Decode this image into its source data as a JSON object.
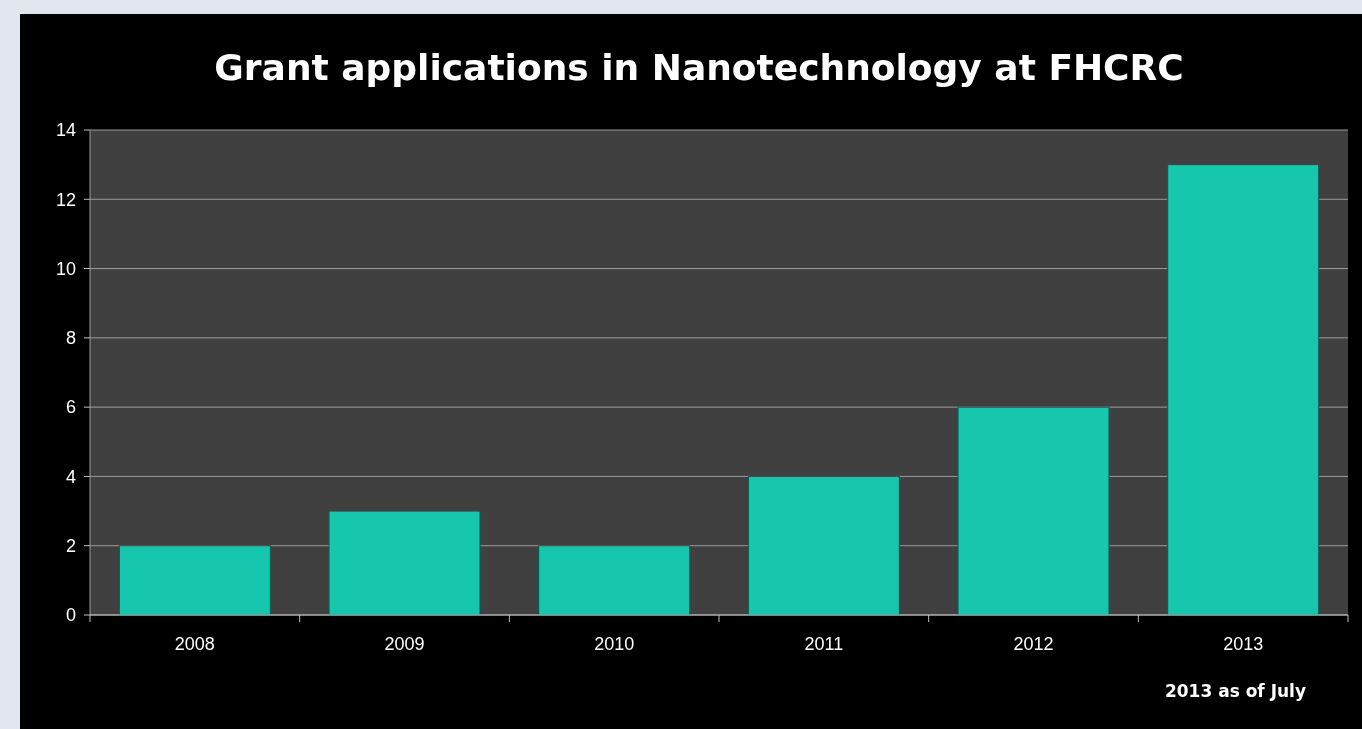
{
  "chart_data": {
    "type": "bar",
    "title": "Grant applications in Nanotechnology at FHCRC",
    "categories": [
      "2008",
      "2009",
      "2010",
      "2011",
      "2012",
      "2013"
    ],
    "values": [
      2,
      3,
      2,
      4,
      6,
      13
    ],
    "color": "#17c7ad",
    "ylim": [
      0,
      14
    ],
    "yticks": [
      0,
      2,
      4,
      6,
      8,
      10,
      12,
      14
    ],
    "grid": "y",
    "annotations": [
      "2013 as of July"
    ]
  }
}
